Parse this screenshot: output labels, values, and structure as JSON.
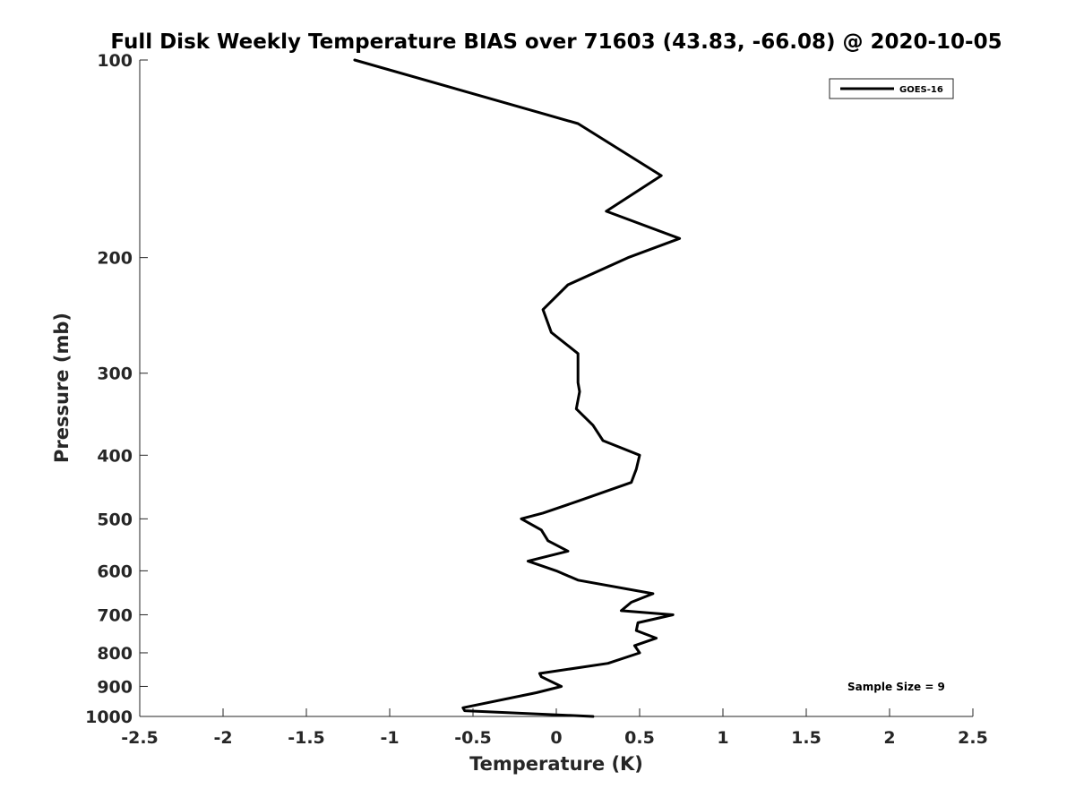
{
  "chart_data": {
    "type": "line",
    "title": "Full Disk Weekly Temperature BIAS over 71603 (43.83, -66.08) @ 2020-10-05",
    "xlabel": "Temperature (K)",
    "ylabel": "Pressure (mb)",
    "xlim": [
      -2.5,
      2.5
    ],
    "ylim": [
      1000,
      100
    ],
    "y_scale": "log",
    "y_direction": "reversed",
    "x_ticks": [
      -2.5,
      -2,
      -1.5,
      -1,
      -0.5,
      0,
      0.5,
      1,
      1.5,
      2,
      2.5
    ],
    "x_tick_labels": [
      "-2.5",
      "-2",
      "-1.5",
      "-1",
      "-0.5",
      "0",
      "0.5",
      "1",
      "1.5",
      "2",
      "2.5"
    ],
    "y_ticks": [
      100,
      200,
      300,
      400,
      500,
      600,
      700,
      800,
      900,
      1000
    ],
    "y_tick_labels": [
      "100",
      "200",
      "300",
      "400",
      "500",
      "600",
      "700",
      "800",
      "900",
      "1000"
    ],
    "grid": false,
    "legend_position": "top-right",
    "series": [
      {
        "name": "GOES-16",
        "color": "#000000",
        "points": [
          {
            "x": -1.21,
            "p": 100
          },
          {
            "x": 0.13,
            "p": 125
          },
          {
            "x": 0.63,
            "p": 150
          },
          {
            "x": 0.3,
            "p": 170
          },
          {
            "x": 0.74,
            "p": 187
          },
          {
            "x": 0.43,
            "p": 200
          },
          {
            "x": 0.07,
            "p": 220
          },
          {
            "x": -0.08,
            "p": 240
          },
          {
            "x": -0.03,
            "p": 260
          },
          {
            "x": 0.13,
            "p": 280
          },
          {
            "x": 0.13,
            "p": 310
          },
          {
            "x": 0.14,
            "p": 320
          },
          {
            "x": 0.12,
            "p": 340
          },
          {
            "x": 0.22,
            "p": 360
          },
          {
            "x": 0.28,
            "p": 380
          },
          {
            "x": 0.5,
            "p": 400
          },
          {
            "x": 0.48,
            "p": 420
          },
          {
            "x": 0.45,
            "p": 440
          },
          {
            "x": 0.13,
            "p": 470
          },
          {
            "x": -0.08,
            "p": 490
          },
          {
            "x": -0.21,
            "p": 500
          },
          {
            "x": -0.09,
            "p": 520
          },
          {
            "x": -0.05,
            "p": 540
          },
          {
            "x": 0.07,
            "p": 560
          },
          {
            "x": -0.17,
            "p": 580
          },
          {
            "x": 0.0,
            "p": 600
          },
          {
            "x": 0.13,
            "p": 620
          },
          {
            "x": 0.58,
            "p": 650
          },
          {
            "x": 0.45,
            "p": 670
          },
          {
            "x": 0.39,
            "p": 690
          },
          {
            "x": 0.7,
            "p": 700
          },
          {
            "x": 0.49,
            "p": 720
          },
          {
            "x": 0.48,
            "p": 740
          },
          {
            "x": 0.6,
            "p": 760
          },
          {
            "x": 0.47,
            "p": 780
          },
          {
            "x": 0.5,
            "p": 800
          },
          {
            "x": 0.31,
            "p": 830
          },
          {
            "x": -0.1,
            "p": 860
          },
          {
            "x": -0.09,
            "p": 870
          },
          {
            "x": 0.03,
            "p": 900
          },
          {
            "x": -0.12,
            "p": 920
          },
          {
            "x": -0.56,
            "p": 970
          },
          {
            "x": -0.55,
            "p": 980
          },
          {
            "x": 0.22,
            "p": 1000
          }
        ]
      }
    ],
    "annotations": [
      "Sample Size = 9"
    ]
  }
}
